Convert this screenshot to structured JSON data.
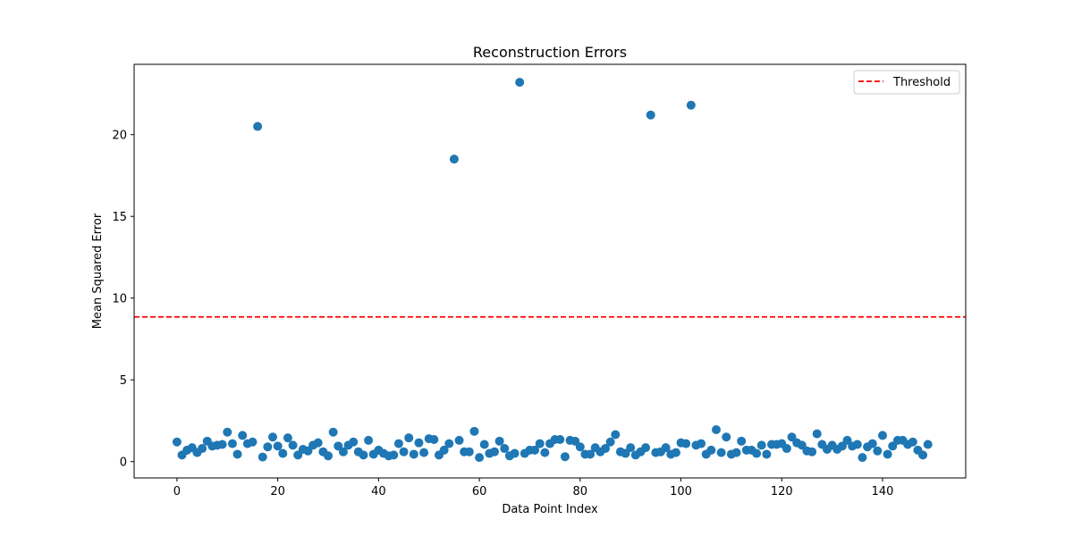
{
  "chart_data": {
    "type": "scatter",
    "title": "Reconstruction Errors",
    "xlabel": "Data Point Index",
    "ylabel": "Mean Squared Error",
    "xlim": [
      -8.5,
      156.5
    ],
    "ylim": [
      -1.0,
      24.3
    ],
    "xticks": [
      0,
      20,
      40,
      60,
      80,
      100,
      120,
      140
    ],
    "yticks": [
      0,
      5,
      10,
      15,
      20
    ],
    "grid": false,
    "legend_position": "upper right",
    "threshold": {
      "label": "Threshold",
      "value": 8.85,
      "color": "#ff0000",
      "style": "dashed"
    },
    "series": [
      {
        "color": "#1f77b4",
        "x": [
          0,
          1,
          2,
          3,
          4,
          5,
          6,
          7,
          8,
          9,
          10,
          11,
          12,
          13,
          14,
          15,
          16,
          17,
          18,
          19,
          20,
          21,
          22,
          23,
          24,
          25,
          26,
          27,
          28,
          29,
          30,
          31,
          32,
          33,
          34,
          35,
          36,
          37,
          38,
          39,
          40,
          41,
          42,
          43,
          44,
          45,
          46,
          47,
          48,
          49,
          50,
          51,
          52,
          53,
          54,
          55,
          56,
          57,
          58,
          59,
          60,
          61,
          62,
          63,
          64,
          65,
          66,
          67,
          68,
          69,
          70,
          71,
          72,
          73,
          74,
          75,
          76,
          77,
          78,
          79,
          80,
          81,
          82,
          83,
          84,
          85,
          86,
          87,
          88,
          89,
          90,
          91,
          92,
          93,
          94,
          95,
          96,
          97,
          98,
          99,
          100,
          101,
          102,
          103,
          104,
          105,
          106,
          107,
          108,
          109,
          110,
          111,
          112,
          113,
          114,
          115,
          116,
          117,
          118,
          119,
          120,
          121,
          122,
          123,
          124,
          125,
          126,
          127,
          128,
          129,
          130,
          131,
          132,
          133,
          134,
          135,
          136,
          137,
          138,
          139,
          140,
          141,
          142,
          143,
          144,
          145,
          146,
          147,
          148,
          149
        ],
        "y": [
          1.2,
          0.4,
          0.7,
          0.85,
          0.55,
          0.8,
          1.25,
          0.95,
          1.0,
          1.05,
          1.8,
          1.1,
          0.45,
          1.6,
          1.1,
          1.2,
          20.5,
          0.28,
          0.9,
          1.5,
          0.95,
          0.5,
          1.45,
          1.0,
          0.4,
          0.75,
          0.65,
          1.0,
          1.15,
          0.6,
          0.35,
          1.8,
          0.95,
          0.6,
          1.0,
          1.2,
          0.6,
          0.4,
          1.3,
          0.45,
          0.7,
          0.5,
          0.35,
          0.4,
          1.1,
          0.6,
          1.45,
          0.45,
          1.15,
          0.55,
          1.4,
          1.35,
          0.4,
          0.7,
          1.1,
          18.5,
          1.3,
          0.6,
          0.6,
          1.85,
          0.25,
          1.05,
          0.5,
          0.6,
          1.25,
          0.8,
          0.35,
          0.5,
          23.2,
          0.5,
          0.7,
          0.7,
          1.1,
          0.55,
          1.1,
          1.35,
          1.35,
          0.3,
          1.3,
          1.25,
          0.9,
          0.45,
          0.45,
          0.85,
          0.6,
          0.8,
          1.2,
          1.65,
          0.6,
          0.5,
          0.85,
          0.4,
          0.6,
          0.85,
          21.2,
          0.55,
          0.6,
          0.85,
          0.45,
          0.55,
          1.15,
          1.1,
          21.8,
          1.0,
          1.1,
          0.45,
          0.7,
          1.95,
          0.55,
          1.5,
          0.45,
          0.55,
          1.25,
          0.7,
          0.7,
          0.5,
          1.0,
          0.45,
          1.05,
          1.05,
          1.1,
          0.8,
          1.5,
          1.15,
          1.0,
          0.65,
          0.6,
          1.7,
          1.05,
          0.75,
          1.0,
          0.75,
          0.95,
          1.3,
          0.95,
          1.05,
          0.25,
          0.9,
          1.1,
          0.65,
          1.6,
          0.45,
          0.95,
          1.3,
          1.3,
          1.05,
          1.2,
          0.7,
          0.4,
          1.05
        ]
      }
    ]
  }
}
